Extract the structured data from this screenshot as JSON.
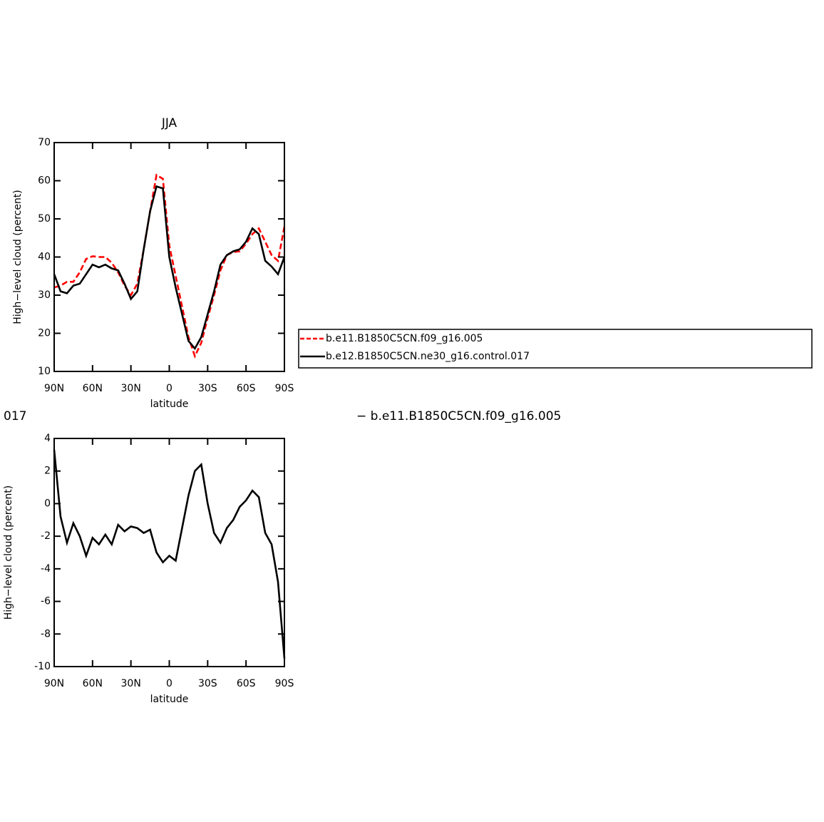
{
  "chart_data": [
    {
      "type": "line",
      "title": "JJA",
      "xlabel": "latitude",
      "ylabel": "High−level cloud (percent)",
      "x": [
        90,
        85,
        80,
        75,
        70,
        65,
        60,
        55,
        50,
        45,
        40,
        35,
        30,
        25,
        20,
        15,
        10,
        5,
        0,
        -5,
        -10,
        -15,
        -20,
        -25,
        -30,
        -35,
        -40,
        -45,
        -50,
        -55,
        -60,
        -65,
        -70,
        -75,
        -80,
        -85,
        -90
      ],
      "xlim": [
        90,
        -90
      ],
      "xticks": [
        {
          "value": 90,
          "label": "90N"
        },
        {
          "value": 60,
          "label": "60N"
        },
        {
          "value": 30,
          "label": "30N"
        },
        0,
        {
          "value": -30,
          "label": "30S"
        },
        {
          "value": -60,
          "label": "60S"
        },
        {
          "value": -90,
          "label": "90S"
        }
      ],
      "ylim": [
        10,
        70
      ],
      "yticks": [
        10,
        20,
        30,
        40,
        50,
        60,
        70
      ],
      "legend": "right",
      "series": [
        {
          "name": "b.e11.B1850C5CN.f09_g16.005",
          "color": "#ff0000",
          "line_style": "dashed",
          "values": [
            32,
            32.5,
            33.5,
            33.5,
            36,
            39.5,
            40.2,
            40,
            40,
            38.5,
            36,
            32.5,
            30,
            33,
            42,
            52,
            61.5,
            60.5,
            43,
            35,
            27,
            19,
            14,
            17.5,
            24,
            30,
            36.5,
            40.5,
            41.3,
            41.5,
            43.5,
            46,
            47.5,
            44,
            40.5,
            39,
            48
          ]
        },
        {
          "name": "b.e12.B1850C5CN.ne30_g16.control.017",
          "color": "#000000",
          "line_style": "solid",
          "values": [
            35.5,
            31,
            30.5,
            32.5,
            33,
            35.5,
            38,
            37.3,
            38,
            37,
            36.5,
            33,
            29,
            31,
            42,
            52,
            58.5,
            58,
            40,
            32,
            25,
            18,
            16,
            19,
            25,
            31,
            38,
            40.5,
            41.5,
            42,
            44,
            47.5,
            46,
            39,
            37.5,
            35.5,
            40
          ]
        }
      ]
    },
    {
      "type": "line",
      "title_parts": [
        "017",
        "− b.e11.B1850C5CN.f09_g16.005"
      ],
      "xlabel": "latitude",
      "ylabel": "High−level cloud (percent)",
      "x": [
        90,
        85,
        80,
        75,
        70,
        65,
        60,
        55,
        50,
        45,
        40,
        35,
        30,
        25,
        20,
        15,
        10,
        5,
        0,
        -5,
        -10,
        -15,
        -20,
        -25,
        -30,
        -35,
        -40,
        -45,
        -50,
        -55,
        -60,
        -65,
        -70,
        -75,
        -80,
        -85,
        -90
      ],
      "xlim": [
        90,
        -90
      ],
      "xticks": [
        {
          "value": 90,
          "label": "90N"
        },
        {
          "value": 60,
          "label": "60N"
        },
        {
          "value": 30,
          "label": "30N"
        },
        0,
        {
          "value": -30,
          "label": "30S"
        },
        {
          "value": -60,
          "label": "60S"
        },
        {
          "value": -90,
          "label": "90S"
        }
      ],
      "ylim": [
        -10,
        4
      ],
      "yticks": [
        -10,
        -8,
        -6,
        -4,
        -2,
        0,
        2,
        4
      ],
      "series": [
        {
          "color": "#000000",
          "line_style": "solid",
          "values": [
            3.3,
            -0.8,
            -2.4,
            -1.2,
            -2.0,
            -3.2,
            -2.1,
            -2.5,
            -1.9,
            -2.5,
            -1.3,
            -1.7,
            -1.4,
            -1.5,
            -1.8,
            -1.6,
            -3.0,
            -3.6,
            -3.2,
            -3.5,
            -1.5,
            0.5,
            2.0,
            2.4,
            0.0,
            -1.8,
            -2.4,
            -1.5,
            -1.0,
            -0.2,
            0.2,
            0.8,
            0.4,
            -1.8,
            -2.5,
            -4.8,
            -9.5
          ]
        }
      ]
    }
  ]
}
